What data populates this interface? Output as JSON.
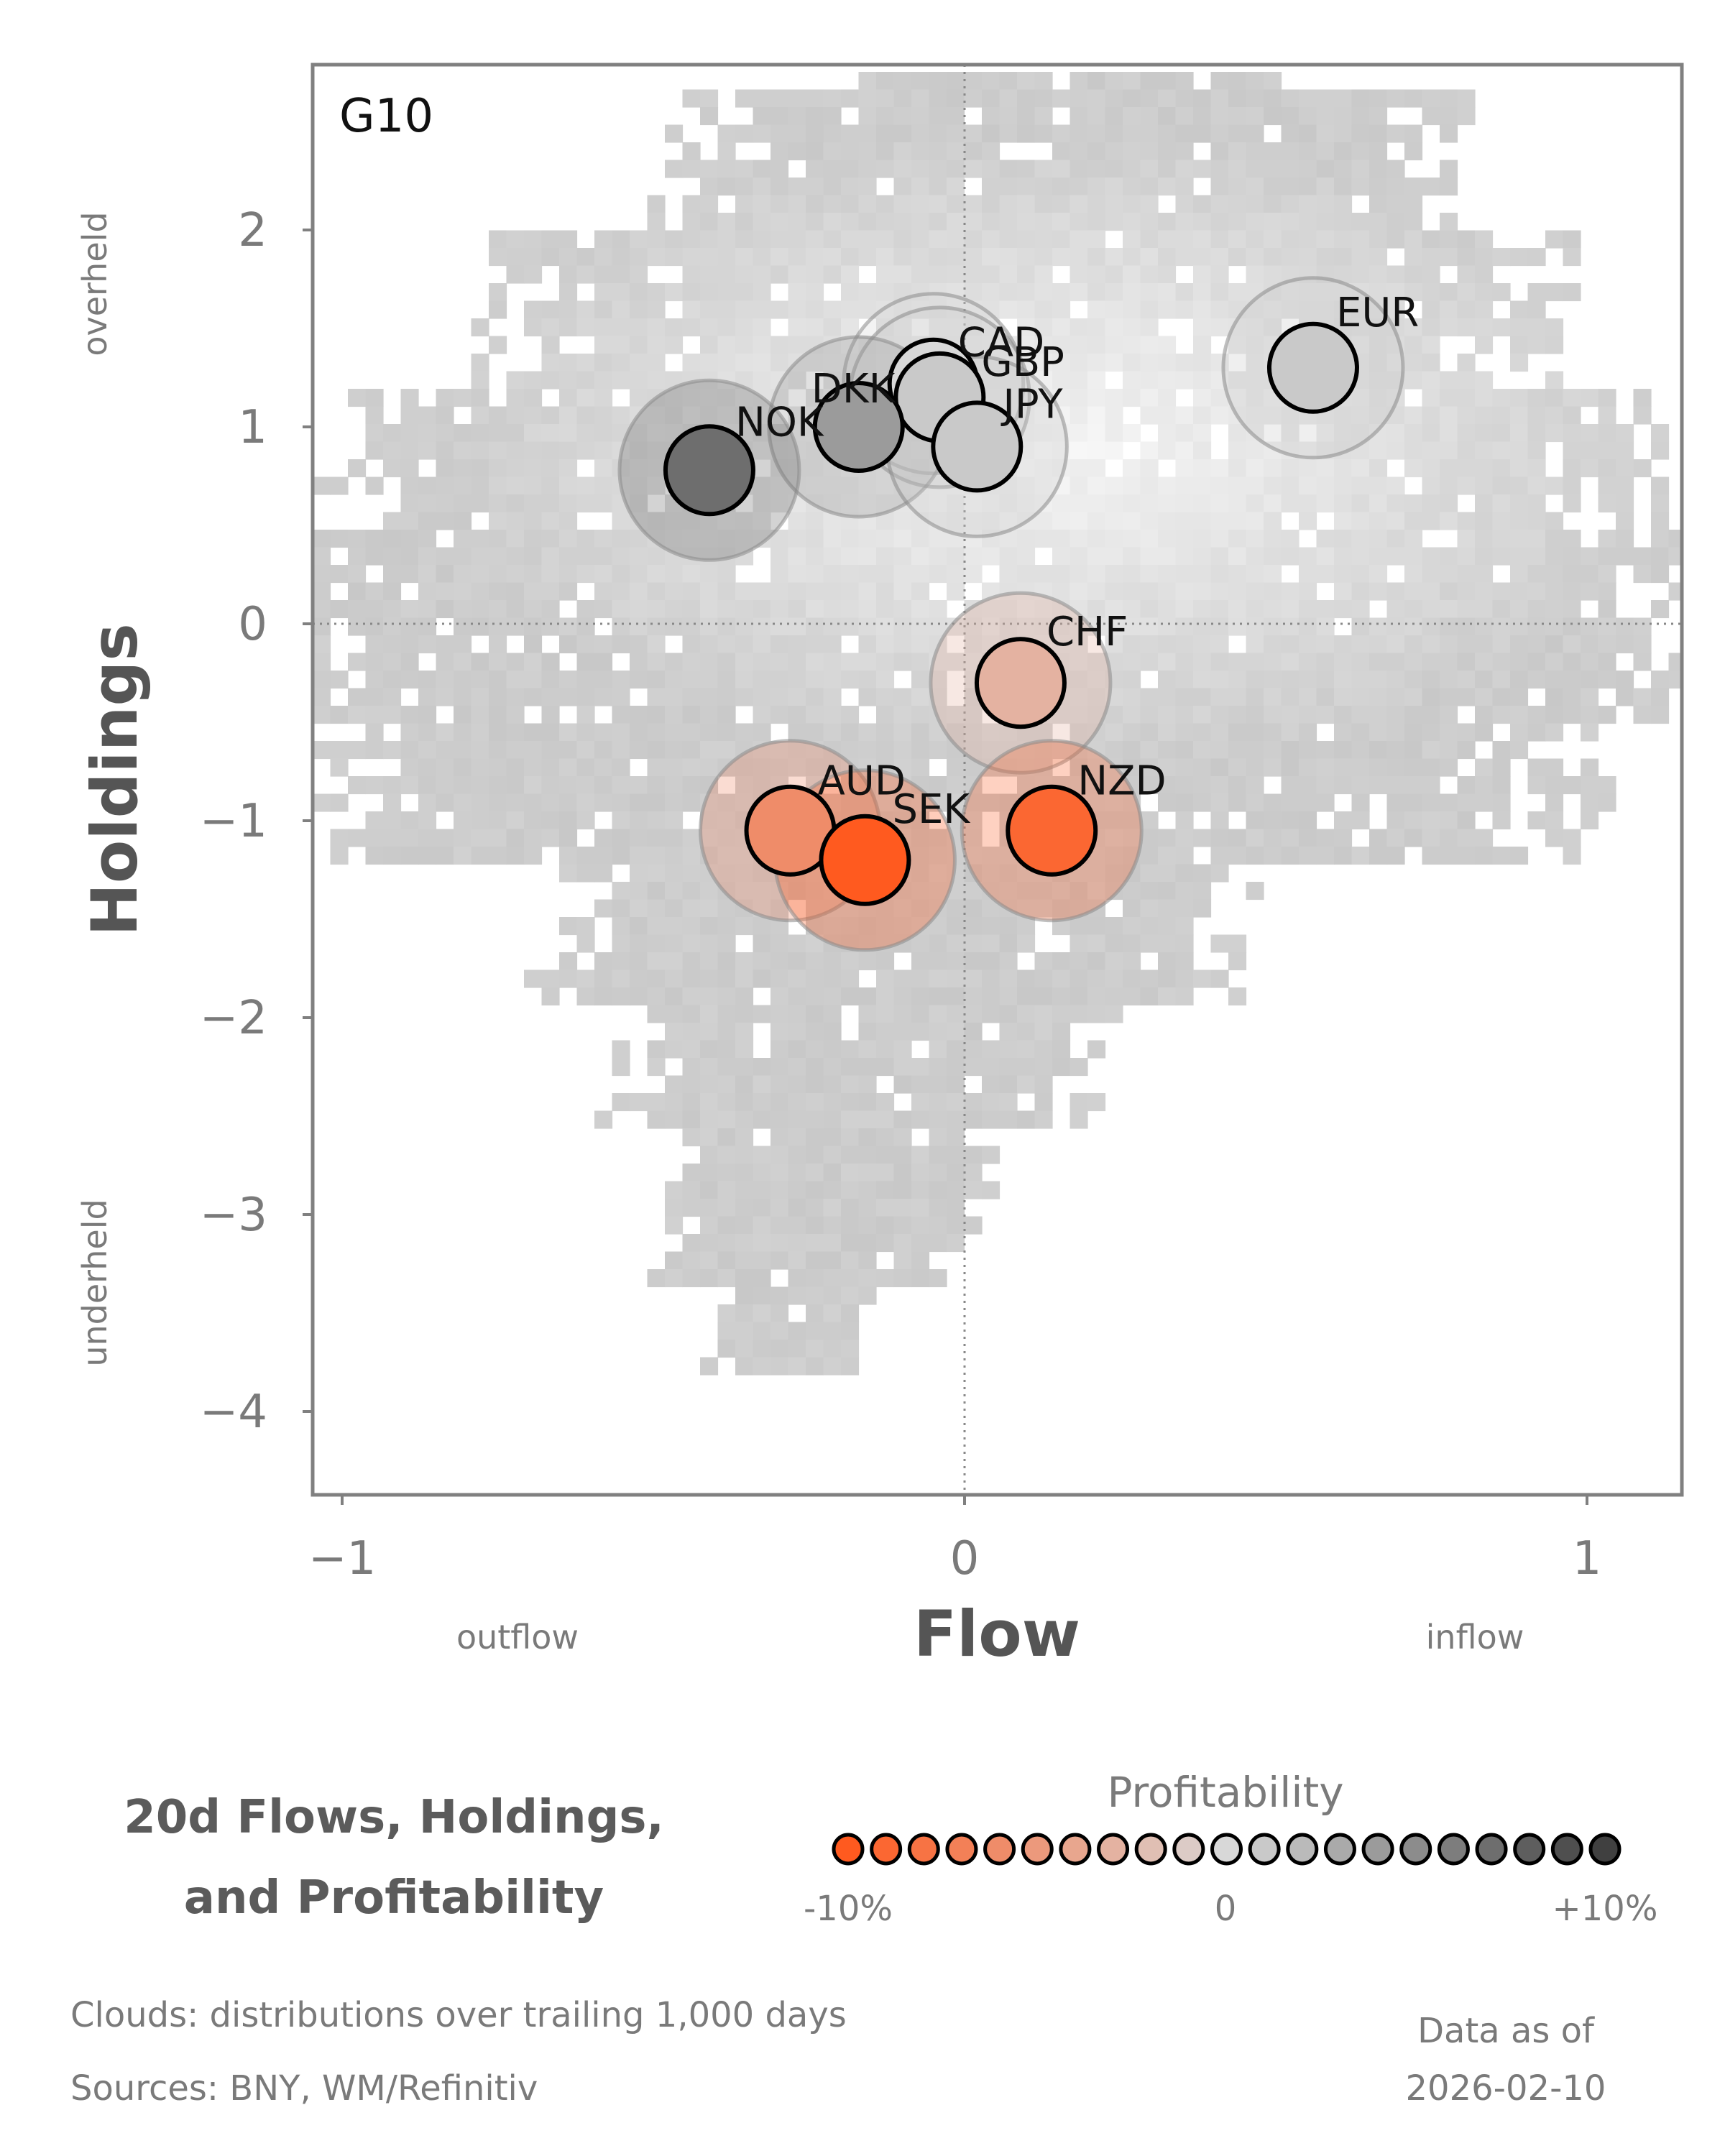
{
  "chart_data": {
    "type": "scatter",
    "panel_label": "G10",
    "xlabel": "Flow",
    "ylabel": "Holdings",
    "x_side_labels": {
      "left": "outflow",
      "right": "inflow"
    },
    "y_side_labels": {
      "top": "overheld",
      "bottom": "underheld"
    },
    "xlim": [
      -1.05,
      1.15
    ],
    "ylim": [
      -4.4,
      2.85
    ],
    "x_ticks": [
      {
        "value": -1,
        "label": "−1"
      },
      {
        "value": 0,
        "label": "0"
      },
      {
        "value": 1,
        "label": "1"
      }
    ],
    "y_ticks": [
      {
        "value": 2,
        "label": "2"
      },
      {
        "value": 1,
        "label": "1"
      },
      {
        "value": 0,
        "label": "0"
      },
      {
        "value": -1,
        "label": "−1"
      },
      {
        "value": -2,
        "label": "−2"
      },
      {
        "value": -3,
        "label": "−3"
      },
      {
        "value": -4,
        "label": "−4"
      }
    ],
    "reference_lines": {
      "x": 0,
      "y": 0,
      "style": "dotted"
    },
    "points": [
      {
        "label": "EUR",
        "flow": 0.56,
        "holdings": 1.3,
        "profitability": 1.0
      },
      {
        "label": "CAD",
        "flow": -0.05,
        "holdings": 1.22,
        "profitability": 0.0
      },
      {
        "label": "GBP",
        "flow": -0.04,
        "holdings": 1.15,
        "profitability": 1.0
      },
      {
        "label": "DKK",
        "flow": -0.17,
        "holdings": 1.0,
        "profitability": 4.0
      },
      {
        "label": "JPY",
        "flow": 0.02,
        "holdings": 0.9,
        "profitability": 1.0
      },
      {
        "label": "NOK",
        "flow": -0.41,
        "holdings": 0.78,
        "profitability": 7.0
      },
      {
        "label": "CHF",
        "flow": 0.09,
        "holdings": -0.3,
        "profitability": -3.0
      },
      {
        "label": "AUD",
        "flow": -0.28,
        "holdings": -1.05,
        "profitability": -6.0
      },
      {
        "label": "NZD",
        "flow": 0.14,
        "holdings": -1.05,
        "profitability": -9.0
      },
      {
        "label": "SEK",
        "flow": -0.16,
        "holdings": -1.2,
        "profitability": -10.0
      }
    ],
    "background": "density cloud (grey heatmap) of trailing 1,000-day distributions",
    "colors": {
      "negative": "#ff5a1f",
      "neutral": "#d8d8d8",
      "positive": "#404040",
      "marker_edge": "#000000"
    },
    "legend": {
      "title": "Profitability",
      "min_label": "-10%",
      "mid_label": "0",
      "max_label": "+10%",
      "range": [
        -10,
        10
      ],
      "steps": 21
    }
  },
  "footer": {
    "title_line1": "20d Flows, Holdings,",
    "title_line2": "and Profitability",
    "note_clouds": "Clouds:  distributions over trailing 1,000 days",
    "note_sources": "Sources:  BNY, WM/Refinitiv",
    "asof_line1": "Data as of",
    "asof_line2": "2026-02-10"
  }
}
